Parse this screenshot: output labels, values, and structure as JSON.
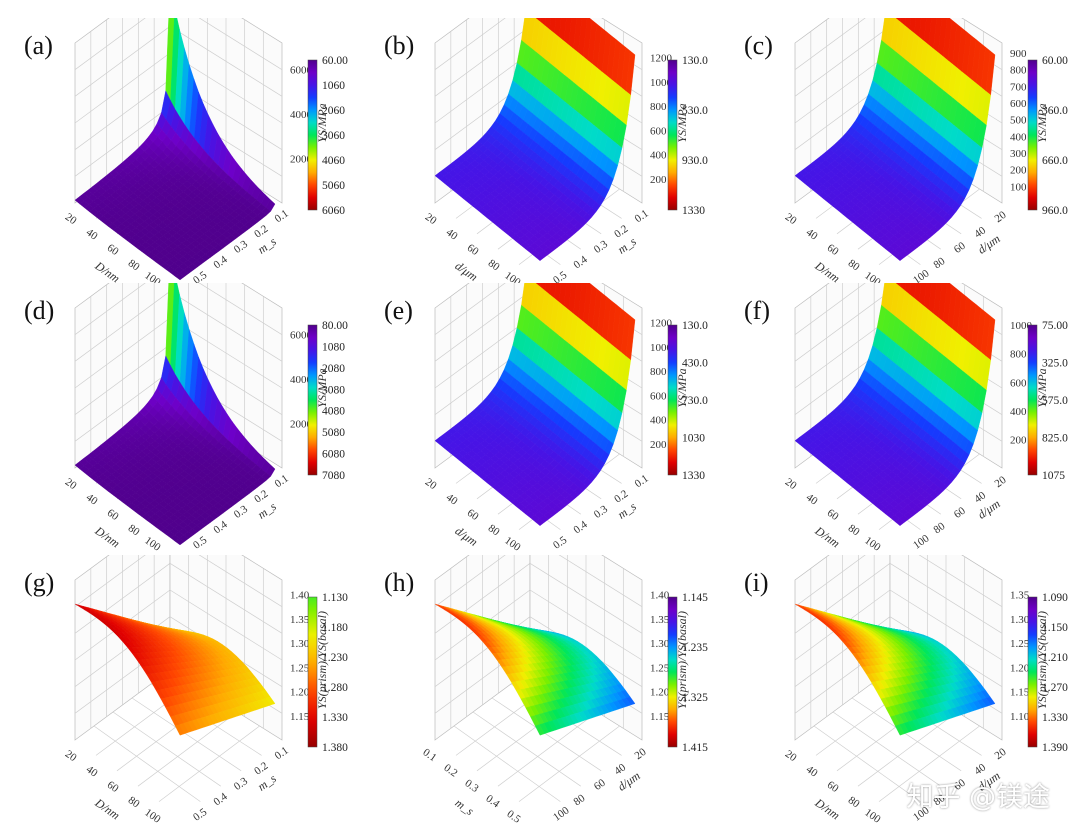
{
  "watermark": "知乎 @镁途",
  "chart_data": [
    {
      "id": "a",
      "label": "(a)",
      "type": "surface3d",
      "shape": "spike-corner",
      "x_axis": {
        "label": "D/nm",
        "ticks": [
          "20",
          "40",
          "60",
          "80",
          "100"
        ]
      },
      "y_axis": {
        "label": "m_s",
        "ticks": [
          "0.1",
          "0.2",
          "0.3",
          "0.4",
          "0.5"
        ]
      },
      "z_axis": {
        "label": "YS/MPa",
        "ticks": [
          "2000",
          "4000",
          "6000"
        ]
      },
      "colorbar": [
        "60.00",
        "1060",
        "2060",
        "3060",
        "4060",
        "5060",
        "6060"
      ],
      "colorbar_order": "blue-to-red"
    },
    {
      "id": "b",
      "label": "(b)",
      "type": "surface3d",
      "shape": "wall-back",
      "x_axis": {
        "label": "d/μm",
        "ticks": [
          "20",
          "40",
          "60",
          "80",
          "100"
        ]
      },
      "y_axis": {
        "label": "m_s",
        "ticks": [
          "0.1",
          "0.2",
          "0.3",
          "0.4",
          "0.5"
        ]
      },
      "z_axis": {
        "label": "YS/MPa",
        "ticks": [
          "200",
          "400",
          "600",
          "800",
          "1000",
          "1200"
        ]
      },
      "colorbar": [
        "130.0",
        "530.0",
        "930.0",
        "1330"
      ],
      "colorbar_order": "blue-to-red"
    },
    {
      "id": "c",
      "label": "(c)",
      "type": "surface3d",
      "shape": "wall-back",
      "x_axis": {
        "label": "D/nm",
        "ticks": [
          "20",
          "40",
          "60",
          "80",
          "100"
        ]
      },
      "y_axis": {
        "label": "d/μm",
        "ticks": [
          "20",
          "40",
          "60",
          "80",
          "100"
        ]
      },
      "z_axis": {
        "label": "YS/MPa",
        "ticks": [
          "100",
          "200",
          "300",
          "400",
          "500",
          "600",
          "700",
          "800",
          "900"
        ]
      },
      "colorbar": [
        "60.00",
        "360.0",
        "660.0",
        "960.0"
      ],
      "colorbar_order": "blue-to-red"
    },
    {
      "id": "d",
      "label": "(d)",
      "type": "surface3d",
      "shape": "spike-corner",
      "x_axis": {
        "label": "D/nm",
        "ticks": [
          "20",
          "40",
          "60",
          "80",
          "100"
        ]
      },
      "y_axis": {
        "label": "m_s",
        "ticks": [
          "0.1",
          "0.2",
          "0.3",
          "0.4",
          "0.5"
        ]
      },
      "z_axis": {
        "label": "YS/MPa",
        "ticks": [
          "2000",
          "4000",
          "6000"
        ]
      },
      "colorbar": [
        "80.00",
        "1080",
        "2080",
        "3080",
        "4080",
        "5080",
        "6080",
        "7080"
      ],
      "colorbar_order": "blue-to-red"
    },
    {
      "id": "e",
      "label": "(e)",
      "type": "surface3d",
      "shape": "wall-back",
      "x_axis": {
        "label": "d/μm",
        "ticks": [
          "20",
          "40",
          "60",
          "80",
          "100"
        ]
      },
      "y_axis": {
        "label": "m_s",
        "ticks": [
          "0.1",
          "0.2",
          "0.3",
          "0.4",
          "0.5"
        ]
      },
      "z_axis": {
        "label": "YS/MPa",
        "ticks": [
          "200",
          "400",
          "600",
          "800",
          "1000",
          "1200"
        ]
      },
      "colorbar": [
        "130.0",
        "430.0",
        "730.0",
        "1030",
        "1330"
      ],
      "colorbar_order": "blue-to-red"
    },
    {
      "id": "f",
      "label": "(f)",
      "type": "surface3d",
      "shape": "wall-back",
      "x_axis": {
        "label": "D/nm",
        "ticks": [
          "20",
          "40",
          "60",
          "80",
          "100"
        ]
      },
      "y_axis": {
        "label": "d/μm",
        "ticks": [
          "20",
          "40",
          "60",
          "80",
          "100"
        ]
      },
      "z_axis": {
        "label": "YS/MPa",
        "ticks": [
          "200",
          "400",
          "600",
          "800",
          "1000"
        ]
      },
      "colorbar": [
        "75.00",
        "325.0",
        "575.0",
        "825.0",
        "1075"
      ],
      "colorbar_order": "blue-to-red"
    },
    {
      "id": "g",
      "label": "(g)",
      "type": "surface3d",
      "shape": "ratio",
      "x_axis": {
        "label": "D/nm",
        "ticks": [
          "20",
          "40",
          "60",
          "80",
          "100"
        ]
      },
      "y_axis": {
        "label": "m_s",
        "ticks": [
          "0.1",
          "0.2",
          "0.3",
          "0.4",
          "0.5"
        ]
      },
      "z_axis": {
        "label": "YS(prism)/YS(basal)",
        "ticks": [
          "1.15",
          "1.20",
          "1.25",
          "1.30",
          "1.35",
          "1.40"
        ]
      },
      "colorbar": [
        "1.130",
        "1.180",
        "1.230",
        "1.280",
        "1.330",
        "1.380"
      ],
      "colorbar_order": "green-to-red"
    },
    {
      "id": "h",
      "label": "(h)",
      "type": "surface3d",
      "shape": "ratio",
      "x_axis": {
        "label": "m_s",
        "ticks": [
          "0.1",
          "0.2",
          "0.3",
          "0.4",
          "0.5"
        ]
      },
      "y_axis": {
        "label": "d/μm",
        "ticks": [
          "20",
          "40",
          "60",
          "80",
          "100"
        ]
      },
      "z_axis": {
        "label": "YS(prism)/YS(basal)",
        "ticks": [
          "1.15",
          "1.20",
          "1.25",
          "1.30",
          "1.35",
          "1.40"
        ]
      },
      "colorbar": [
        "1.145",
        "1.235",
        "1.325",
        "1.415"
      ],
      "colorbar_order": "blue-to-red"
    },
    {
      "id": "i",
      "label": "(i)",
      "type": "surface3d",
      "shape": "ratio",
      "x_axis": {
        "label": "D/nm",
        "ticks": [
          "20",
          "40",
          "60",
          "80",
          "100"
        ]
      },
      "y_axis": {
        "label": "d/μm",
        "ticks": [
          "20",
          "40",
          "60",
          "80",
          "100"
        ]
      },
      "z_axis": {
        "label": "YS(prism)/YS(basal)",
        "ticks": [
          "1.10",
          "1.15",
          "1.20",
          "1.25",
          "1.30",
          "1.35"
        ]
      },
      "colorbar": [
        "1.090",
        "1.150",
        "1.210",
        "1.270",
        "1.330",
        "1.390"
      ],
      "colorbar_order": "blue-to-red"
    }
  ]
}
